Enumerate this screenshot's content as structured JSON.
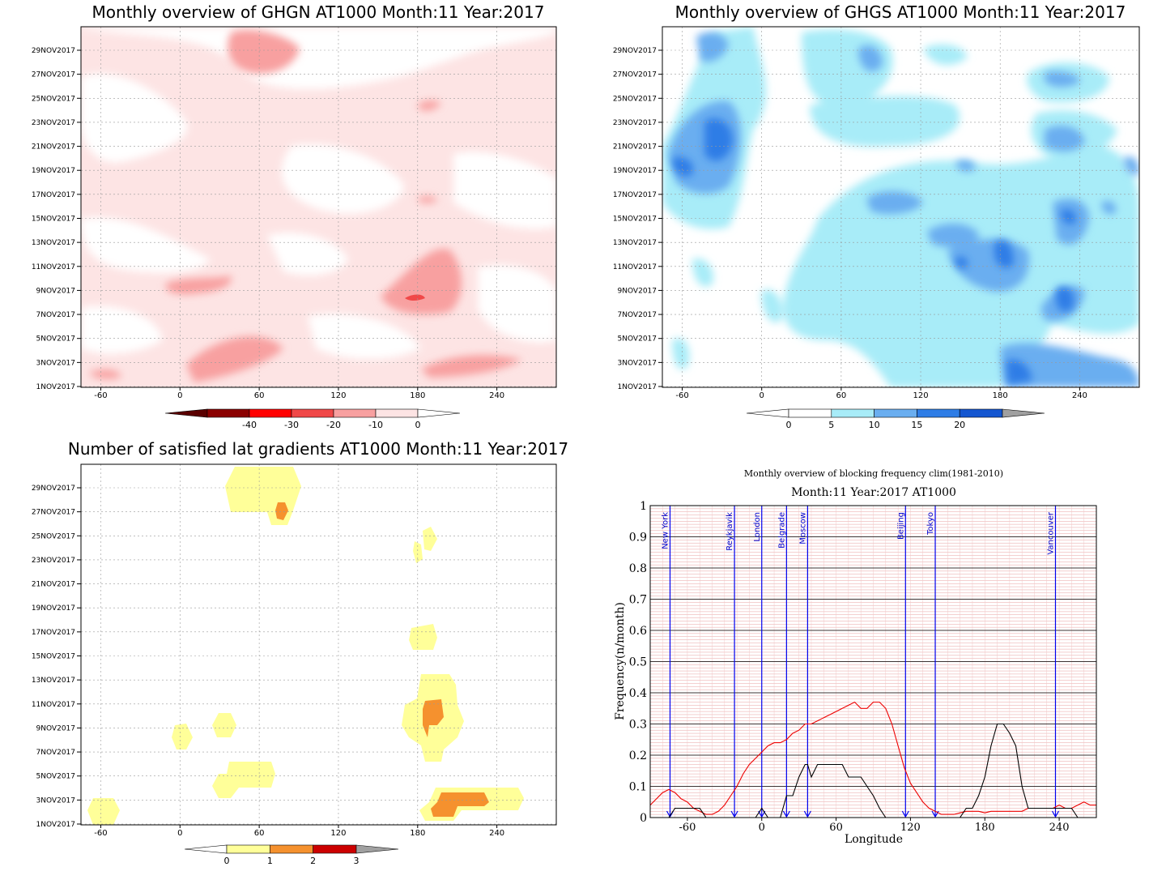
{
  "chart_data": [
    {
      "type": "heatmap",
      "title": "Monthly overview of GHGN AT1000 Month:11 Year:2017",
      "xlim": [
        -75,
        285
      ],
      "xticks": [
        -60,
        0,
        60,
        120,
        180,
        240
      ],
      "yticks": [
        "1NOV2017",
        "3NOV2017",
        "5NOV2017",
        "7NOV2017",
        "9NOV2017",
        "11NOV2017",
        "13NOV2017",
        "15NOV2017",
        "17NOV2017",
        "19NOV2017",
        "21NOV2017",
        "23NOV2017",
        "25NOV2017",
        "27NOV2017",
        "29NOV2017"
      ],
      "colorbar": {
        "labels": [
          "-40",
          "-30",
          "-20",
          "-10",
          "0"
        ],
        "colors": [
          "#8b0000",
          "#ff0000",
          "#f04848",
          "#f8a0a0",
          "#fde4e4"
        ],
        "extend_low": "#5a0000",
        "extend_high": "#ffffff"
      },
      "palette": {
        "light": "#fde4e4",
        "medium": "#f8a0a0",
        "strong": "#f04848"
      }
    },
    {
      "type": "heatmap",
      "title": "Monthly overview of GHGS AT1000 Month:11 Year:2017",
      "xlim": [
        -75,
        285
      ],
      "xticks": [
        -60,
        0,
        60,
        120,
        180,
        240
      ],
      "yticks": [
        "1NOV2017",
        "3NOV2017",
        "5NOV2017",
        "7NOV2017",
        "9NOV2017",
        "11NOV2017",
        "13NOV2017",
        "15NOV2017",
        "17NOV2017",
        "19NOV2017",
        "21NOV2017",
        "23NOV2017",
        "25NOV2017",
        "27NOV2017",
        "29NOV2017"
      ],
      "colorbar": {
        "labels": [
          "0",
          "5",
          "10",
          "15",
          "20"
        ],
        "colors": [
          "#ffffff",
          "#a8ecf8",
          "#6aaef0",
          "#2e7de6",
          "#1456d0"
        ],
        "extend_low": "#ffffff",
        "extend_high": "#a0a0a0"
      },
      "palette": {
        "light": "#a8ecf8",
        "medium": "#6aaef0",
        "strong": "#2e7de6",
        "max": "#1456d0"
      }
    },
    {
      "type": "heatmap",
      "title": "Number of satisfied lat gradients AT1000 Month:11 Year:2017",
      "xlim": [
        -75,
        285
      ],
      "xticks": [
        -60,
        0,
        60,
        120,
        180,
        240
      ],
      "yticks": [
        "1NOV2017",
        "3NOV2017",
        "5NOV2017",
        "7NOV2017",
        "9NOV2017",
        "11NOV2017",
        "13NOV2017",
        "15NOV2017",
        "17NOV2017",
        "19NOV2017",
        "21NOV2017",
        "23NOV2017",
        "25NOV2017",
        "27NOV2017",
        "29NOV2017"
      ],
      "colorbar": {
        "labels": [
          "0",
          "1",
          "2",
          "3"
        ],
        "colors": [
          "#ffff99",
          "#f5912e",
          "#cc0000"
        ],
        "extend_low": "#ffffff",
        "extend_high": "#a0a0a0"
      },
      "palette": {
        "one": "#ffff99",
        "two": "#f5912e"
      }
    },
    {
      "type": "line",
      "title": "Monthly overview of blocking frequency clim(1981-2010)",
      "subtitle": "Month:11 Year:2017  AT1000",
      "xlabel": "Longitude",
      "ylabel": "Frequency(n/month)",
      "xlim": [
        -90,
        270
      ],
      "ylim": [
        0,
        1
      ],
      "xticks": [
        -60,
        0,
        60,
        120,
        180,
        240
      ],
      "yticks": [
        0,
        0.1,
        0.2,
        0.3,
        0.4,
        0.5,
        0.6,
        0.7,
        0.8,
        0.9,
        1
      ],
      "ytick_labels": [
        "0",
        "0.1",
        "0.2",
        "0.3",
        "0.4",
        "0.5",
        "0.6",
        "0.7",
        "0.8",
        "0.9",
        "1"
      ],
      "cities": [
        {
          "name": "New York",
          "lon": -74
        },
        {
          "name": "Reykjavik",
          "lon": -22
        },
        {
          "name": "London",
          "lon": 0
        },
        {
          "name": "Belgrade",
          "lon": 20
        },
        {
          "name": "Moscow",
          "lon": 37
        },
        {
          "name": "Beijing",
          "lon": 116
        },
        {
          "name": "Tokyo",
          "lon": 140
        },
        {
          "name": "Vancouver",
          "lon": 237
        }
      ],
      "series": [
        {
          "color": "#ee0000",
          "x": [
            -90,
            -85,
            -80,
            -75,
            -70,
            -65,
            -60,
            -55,
            -50,
            -45,
            -40,
            -35,
            -30,
            -25,
            -20,
            -15,
            -10,
            -5,
            0,
            5,
            10,
            15,
            20,
            25,
            30,
            35,
            40,
            45,
            50,
            55,
            60,
            65,
            70,
            75,
            80,
            85,
            90,
            95,
            100,
            105,
            110,
            115,
            120,
            125,
            130,
            135,
            140,
            145,
            150,
            155,
            160,
            165,
            170,
            175,
            180,
            185,
            190,
            195,
            200,
            205,
            210,
            215,
            220,
            225,
            230,
            235,
            240,
            245,
            250,
            255,
            260,
            265,
            270
          ],
          "values": [
            0.04,
            0.06,
            0.08,
            0.09,
            0.08,
            0.06,
            0.05,
            0.03,
            0.02,
            0.01,
            0.01,
            0.02,
            0.04,
            0.07,
            0.1,
            0.14,
            0.17,
            0.19,
            0.21,
            0.23,
            0.24,
            0.24,
            0.25,
            0.27,
            0.28,
            0.3,
            0.3,
            0.31,
            0.32,
            0.33,
            0.34,
            0.35,
            0.36,
            0.37,
            0.35,
            0.35,
            0.37,
            0.37,
            0.35,
            0.3,
            0.23,
            0.16,
            0.11,
            0.08,
            0.05,
            0.03,
            0.02,
            0.01,
            0.01,
            0.01,
            0.015,
            0.02,
            0.02,
            0.02,
            0.015,
            0.02,
            0.02,
            0.02,
            0.02,
            0.02,
            0.02,
            0.03,
            0.03,
            0.03,
            0.03,
            0.03,
            0.04,
            0.03,
            0.03,
            0.04,
            0.05,
            0.04,
            0.04
          ]
        },
        {
          "color": "#000000",
          "x": [
            -90,
            -80,
            -75,
            -70,
            -65,
            -50,
            -45,
            -40,
            -20,
            -5,
            0,
            5,
            15,
            20,
            25,
            30,
            35,
            37,
            40,
            45,
            60,
            65,
            70,
            75,
            80,
            85,
            90,
            95,
            100,
            105,
            160,
            165,
            170,
            175,
            180,
            185,
            190,
            195,
            200,
            205,
            210,
            215,
            220,
            250,
            255,
            260,
            270
          ],
          "values": [
            0,
            0,
            0,
            0.03,
            0.03,
            0.03,
            0,
            0,
            0,
            0,
            0.03,
            0,
            0,
            0.07,
            0.07,
            0.13,
            0.17,
            0.17,
            0.13,
            0.17,
            0.17,
            0.17,
            0.13,
            0.13,
            0.13,
            0.1,
            0.07,
            0.03,
            0,
            0,
            0,
            0.03,
            0.03,
            0.07,
            0.13,
            0.23,
            0.3,
            0.3,
            0.27,
            0.23,
            0.1,
            0.03,
            0.03,
            0.03,
            0,
            0,
            0
          ]
        }
      ]
    }
  ]
}
